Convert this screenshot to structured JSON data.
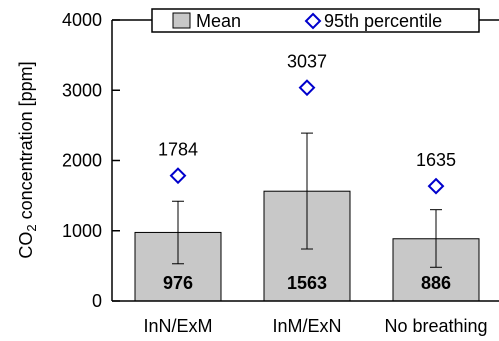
{
  "chart_data": {
    "type": "bar",
    "categories": [
      "InN/ExM",
      "InM/ExN",
      "No breathing"
    ],
    "series": [
      {
        "name": "Mean",
        "values": [
          976,
          1563,
          886
        ],
        "value_labels": [
          "976",
          "1563",
          "886"
        ],
        "error_low": [
          530,
          740,
          480
        ],
        "error_high": [
          1420,
          2390,
          1300
        ],
        "color": "#c8c8c8"
      },
      {
        "name": "95th percentile",
        "values": [
          1784,
          3037,
          1635
        ],
        "value_labels": [
          "1784",
          "3037",
          "1635"
        ],
        "color": "#0000cc",
        "marker": "diamond"
      }
    ],
    "ylabel_main": "CO",
    "ylabel_sub": "2",
    "ylabel_rest": " concentration [ppm]",
    "ylim": [
      0,
      4000
    ],
    "yticks": [
      0,
      1000,
      2000,
      3000,
      4000
    ],
    "ytick_labels": [
      "0",
      "1000",
      "2000",
      "3000",
      "4000"
    ],
    "legend": {
      "placement": "top",
      "entries": [
        "Mean",
        "95th percentile"
      ]
    },
    "grid": false
  }
}
